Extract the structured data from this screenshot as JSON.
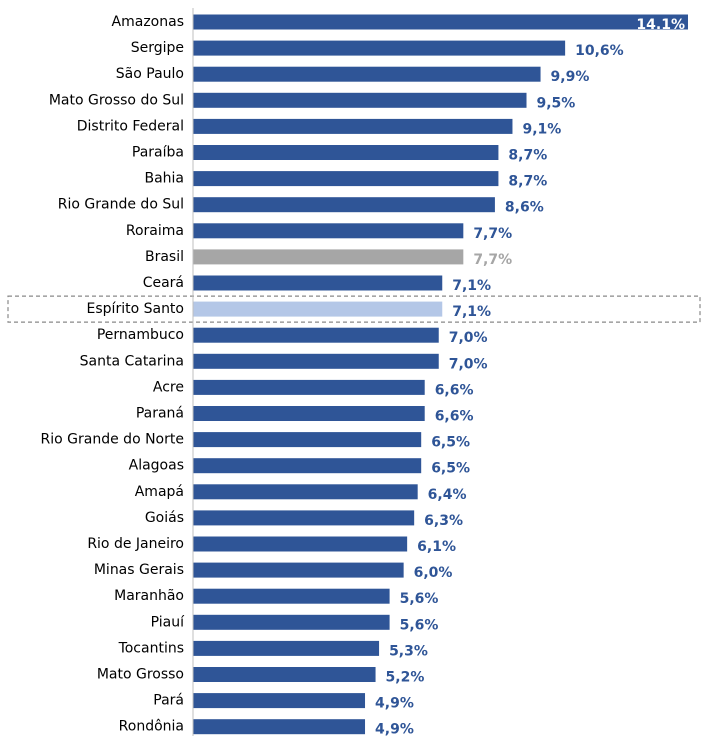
{
  "chart_data": {
    "type": "bar",
    "orientation": "horizontal",
    "categories": [
      "Amazonas",
      "Sergipe",
      "São Paulo",
      "Mato Grosso do Sul",
      "Distrito Federal",
      "Paraíba",
      "Bahia",
      "Rio Grande do Sul",
      "Roraima",
      "Brasil",
      "Ceará",
      "Espírito Santo",
      "Pernambuco",
      "Santa Catarina",
      "Acre",
      "Paraná",
      "Rio Grande do Norte",
      "Alagoas",
      "Amapá",
      "Goiás",
      "Rio de Janeiro",
      "Minas Gerais",
      "Maranhão",
      "Piauí",
      "Tocantins",
      "Mato Grosso",
      "Pará",
      "Rondônia"
    ],
    "values": [
      14.1,
      10.6,
      9.9,
      9.5,
      9.1,
      8.7,
      8.7,
      8.6,
      7.7,
      7.7,
      7.1,
      7.1,
      7.0,
      7.0,
      6.6,
      6.6,
      6.5,
      6.5,
      6.4,
      6.3,
      6.1,
      6.0,
      5.6,
      5.6,
      5.3,
      5.2,
      4.9,
      4.9
    ],
    "value_labels": [
      "14.1%",
      "10,6%",
      "9,9%",
      "9,5%",
      "9,1%",
      "8,7%",
      "8,7%",
      "8,6%",
      "7,7%",
      "7,7%",
      "7,1%",
      "7,1%",
      "7,0%",
      "7,0%",
      "6,6%",
      "6,6%",
      "6,5%",
      "6,5%",
      "6,4%",
      "6,3%",
      "6,1%",
      "6,0%",
      "5,6%",
      "5,6%",
      "5,3%",
      "5,2%",
      "4,9%",
      "4,9%"
    ],
    "colors": [
      "#2f5597",
      "#2f5597",
      "#2f5597",
      "#2f5597",
      "#2f5597",
      "#2f5597",
      "#2f5597",
      "#2f5597",
      "#2f5597",
      "#a6a6a6",
      "#2f5597",
      "#b4c7e7",
      "#2f5597",
      "#2f5597",
      "#2f5597",
      "#2f5597",
      "#2f5597",
      "#2f5597",
      "#2f5597",
      "#2f5597",
      "#2f5597",
      "#2f5597",
      "#2f5597",
      "#2f5597",
      "#2f5597",
      "#2f5597",
      "#2f5597",
      "#2f5597"
    ],
    "label_colors": [
      "#2f5597",
      "#2f5597",
      "#2f5597",
      "#2f5597",
      "#2f5597",
      "#2f5597",
      "#2f5597",
      "#2f5597",
      "#2f5597",
      "#a6a6a6",
      "#2f5597",
      "#2f5597",
      "#2f5597",
      "#2f5597",
      "#2f5597",
      "#2f5597",
      "#2f5597",
      "#2f5597",
      "#2f5597",
      "#2f5597",
      "#2f5597",
      "#2f5597",
      "#2f5597",
      "#2f5597",
      "#2f5597",
      "#2f5597",
      "#2f5597",
      "#2f5597"
    ],
    "highlight": 11,
    "xlim": [
      0,
      14.1
    ]
  }
}
